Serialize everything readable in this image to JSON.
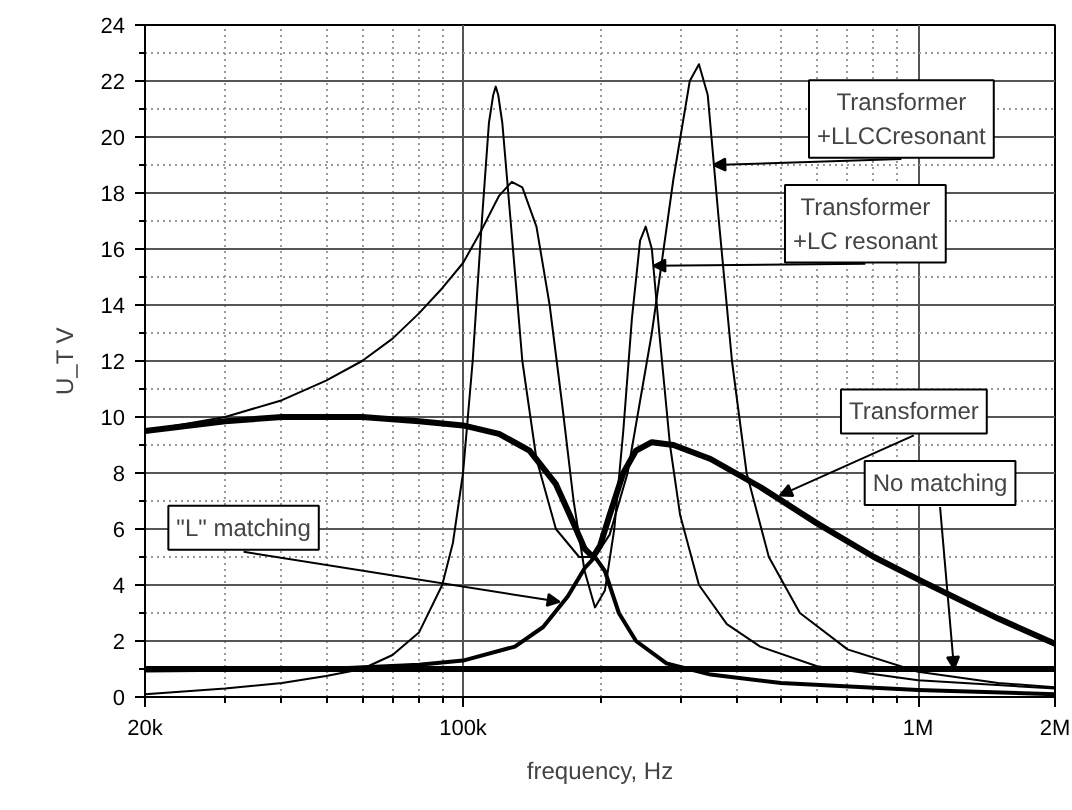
{
  "chart_data": {
    "type": "line",
    "xlabel": "frequency, Hz",
    "ylabel": "U_T V",
    "log": "x",
    "grid": true,
    "marker": "none",
    "line_style": "solid",
    "xlim": [
      20000,
      2000000
    ],
    "xticks": [
      {
        "value": 20000,
        "label": "20k"
      },
      {
        "value": 100000,
        "label": "100k"
      },
      {
        "value": 1000000,
        "label": "1M"
      },
      {
        "value": 2000000,
        "label": "2M"
      }
    ],
    "ylim": [
      0,
      24
    ],
    "yticks": [
      0,
      2,
      4,
      6,
      8,
      10,
      12,
      14,
      16,
      18,
      20,
      22,
      24
    ],
    "series": [
      {
        "color": "#000000",
        "x": [
          20000,
          2000000
        ],
        "values": [
          1.0,
          1.0
        ]
      },
      {
        "color": "#000000",
        "x": [
          20000,
          30000,
          40000,
          60000,
          80000,
          100000,
          120000,
          140000,
          160000,
          175000,
          185000,
          193000,
          200000,
          210000,
          225000,
          240000,
          260000,
          290000,
          350000,
          450000,
          600000,
          800000,
          1000000,
          1500000,
          2000000
        ],
        "values": [
          9.5,
          9.85,
          10.0,
          10.0,
          9.85,
          9.7,
          9.4,
          8.8,
          7.6,
          6.2,
          5.3,
          5.0,
          5.4,
          6.5,
          8.0,
          8.8,
          9.1,
          9.0,
          8.5,
          7.5,
          6.2,
          5.0,
          4.2,
          2.8,
          1.9
        ]
      },
      {
        "color": "#000000",
        "x": [
          20000,
          50000,
          80000,
          100000,
          130000,
          150000,
          170000,
          185000,
          195000,
          205000,
          220000,
          240000,
          280000,
          350000,
          500000,
          1000000,
          2000000
        ],
        "values": [
          0.95,
          1.0,
          1.15,
          1.3,
          1.8,
          2.5,
          3.6,
          4.6,
          5.0,
          4.5,
          3.0,
          2.0,
          1.2,
          0.8,
          0.5,
          0.25,
          0.1
        ]
      },
      {
        "color": "#000000",
        "x": [
          20000,
          30000,
          40000,
          50000,
          60000,
          70000,
          80000,
          90000,
          100000,
          110000,
          120000,
          128000,
          135000,
          145000,
          155000,
          165000,
          175000,
          185000,
          195000,
          205000,
          215000,
          225000,
          235000,
          245000,
          252000,
          260000,
          270000,
          285000,
          300000,
          330000,
          380000,
          450000,
          600000,
          1000000,
          2000000
        ],
        "values": [
          9.5,
          10.0,
          10.6,
          11.3,
          12.0,
          12.8,
          13.7,
          14.6,
          15.5,
          16.7,
          17.9,
          18.4,
          18.2,
          16.8,
          14.0,
          10.5,
          7.0,
          4.5,
          3.2,
          3.8,
          6.0,
          9.5,
          13.5,
          16.3,
          16.8,
          16.0,
          13.0,
          9.0,
          6.5,
          4.0,
          2.6,
          1.8,
          1.1,
          0.6,
          0.3
        ]
      },
      {
        "color": "#000000",
        "x": [
          20000,
          30000,
          40000,
          50000,
          60000,
          70000,
          80000,
          90000,
          95000,
          100000,
          105000,
          110000,
          114000,
          116500,
          118000,
          119500,
          122000,
          128000,
          135000,
          145000,
          160000,
          180000,
          195000,
          210000,
          230000,
          260000,
          290000,
          315000,
          330000,
          345000,
          365000,
          390000,
          420000,
          470000,
          550000,
          700000,
          1000000,
          1500000,
          2000000
        ],
        "values": [
          0.1,
          0.3,
          0.5,
          0.75,
          1.0,
          1.5,
          2.3,
          4.0,
          5.5,
          8.0,
          12.0,
          17.0,
          20.5,
          21.5,
          21.8,
          21.5,
          20.5,
          16.5,
          12.0,
          8.5,
          6.0,
          5.0,
          5.0,
          5.8,
          8.0,
          13.0,
          18.5,
          22.0,
          22.6,
          21.5,
          17.0,
          12.0,
          8.0,
          5.0,
          3.0,
          1.7,
          0.9,
          0.5,
          0.35
        ]
      }
    ],
    "annotations": [
      {
        "text": "Transformer\n+LLCCresonant",
        "x": 355000,
        "y": 19
      },
      {
        "text": "Transformer\n+LC resonant",
        "x": 262000,
        "y": 15.4
      },
      {
        "text": "Transformer",
        "x": 497000,
        "y": 7.2
      },
      {
        "text": "No matching",
        "x": 1200000,
        "y": 1.0
      },
      {
        "text": "\"L\" matching",
        "x": 163000,
        "y": 3.4
      }
    ]
  }
}
